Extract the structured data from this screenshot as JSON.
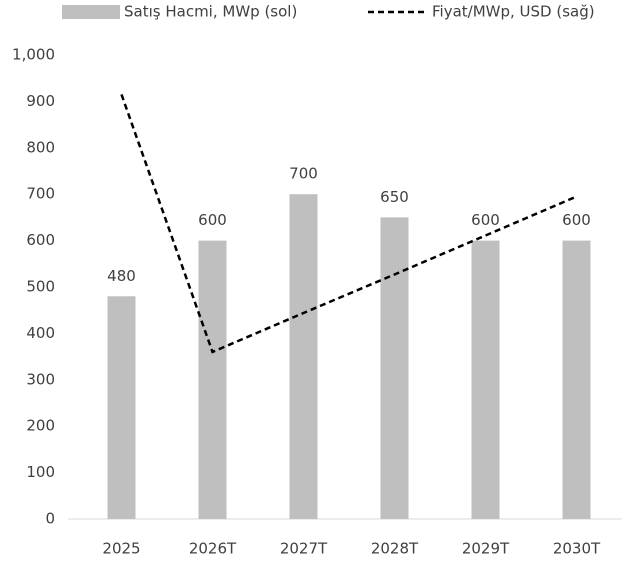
{
  "chart_data": {
    "type": "bar",
    "categories": [
      "2025",
      "2026T",
      "2027T",
      "2028T",
      "2029T",
      "2030T"
    ],
    "series": [
      {
        "name": "Satış Hacmi, MWp (sol)",
        "color": "#bfbfbf",
        "type": "bar",
        "values": [
          480,
          600,
          700,
          650,
          600,
          600
        ]
      },
      {
        "name": "Fiyat/MWp, USD (sağ)",
        "color": "#000000",
        "type": "line",
        "dashed": true,
        "axis": "y2",
        "values": [
          915,
          360,
          444,
          527,
          611,
          695
        ]
      }
    ],
    "ylim": [
      0,
      1000
    ],
    "yticks": [
      0,
      100,
      200,
      300,
      400,
      500,
      600,
      700,
      800,
      900,
      {
        "value": 1000,
        "label": "1,000"
      }
    ],
    "y2lim": [
      0,
      1000
    ],
    "data_labels": true,
    "legend": "top"
  }
}
